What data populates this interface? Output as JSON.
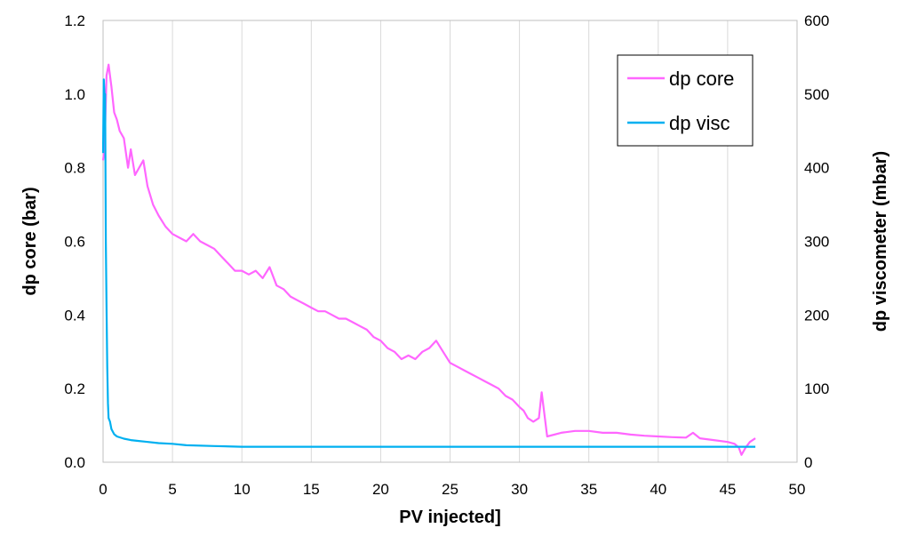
{
  "chart_data": {
    "type": "line",
    "title": "",
    "xlabel": "PV injected]",
    "ylabel": "dp core (bar)",
    "y2label": "dp viscometer (mbar)",
    "xlim": [
      0,
      50
    ],
    "ylim": [
      0,
      1.2
    ],
    "y2lim": [
      0,
      600
    ],
    "x_ticks": [
      "0",
      "5",
      "10",
      "15",
      "20",
      "25",
      "30",
      "35",
      "40",
      "45",
      "50"
    ],
    "y_ticks": [
      "0.0",
      "0.2",
      "0.4",
      "0.6",
      "0.8",
      "1.0",
      "1.2"
    ],
    "y2_ticks": [
      "0",
      "100",
      "200",
      "300",
      "400",
      "500",
      "600"
    ],
    "grid": "vertical",
    "legend_position": "top-right",
    "series": [
      {
        "name": "dp core",
        "axis": "left",
        "color": "#ff66ff",
        "x": [
          0.0,
          0.1,
          0.25,
          0.4,
          0.6,
          0.8,
          1.0,
          1.2,
          1.5,
          1.8,
          2.0,
          2.3,
          2.6,
          2.9,
          3.2,
          3.6,
          4.0,
          4.5,
          5.0,
          5.5,
          6.0,
          6.5,
          7.0,
          7.5,
          8.0,
          8.5,
          9.0,
          9.5,
          10.0,
          10.5,
          11.0,
          11.5,
          12.0,
          12.5,
          13.0,
          13.5,
          14.0,
          14.5,
          15.0,
          15.5,
          16.0,
          16.5,
          17.0,
          17.5,
          18.0,
          18.5,
          19.0,
          19.5,
          20.0,
          20.5,
          21.0,
          21.5,
          22.0,
          22.5,
          23.0,
          23.5,
          24.0,
          24.5,
          25.0,
          25.5,
          26.0,
          26.5,
          27.0,
          27.5,
          28.0,
          28.5,
          29.0,
          29.5,
          30.0,
          30.3,
          30.6,
          31.0,
          31.4,
          31.6,
          32.0,
          33.0,
          34.0,
          35.0,
          36.0,
          37.0,
          38.0,
          39.0,
          40.0,
          41.0,
          42.0,
          42.5,
          43.0,
          44.0,
          45.0,
          45.5,
          45.8,
          46.0,
          46.3,
          46.6,
          47.0
        ],
        "values": [
          0.82,
          0.85,
          1.05,
          1.08,
          1.02,
          0.95,
          0.93,
          0.9,
          0.88,
          0.8,
          0.85,
          0.78,
          0.8,
          0.82,
          0.75,
          0.7,
          0.67,
          0.64,
          0.62,
          0.61,
          0.6,
          0.62,
          0.6,
          0.59,
          0.58,
          0.56,
          0.54,
          0.52,
          0.52,
          0.51,
          0.52,
          0.5,
          0.53,
          0.48,
          0.47,
          0.45,
          0.44,
          0.43,
          0.42,
          0.41,
          0.41,
          0.4,
          0.39,
          0.39,
          0.38,
          0.37,
          0.36,
          0.34,
          0.33,
          0.31,
          0.3,
          0.28,
          0.29,
          0.28,
          0.3,
          0.31,
          0.33,
          0.3,
          0.27,
          0.26,
          0.25,
          0.24,
          0.23,
          0.22,
          0.21,
          0.2,
          0.18,
          0.17,
          0.15,
          0.14,
          0.12,
          0.11,
          0.12,
          0.19,
          0.07,
          0.08,
          0.085,
          0.085,
          0.08,
          0.08,
          0.075,
          0.072,
          0.07,
          0.068,
          0.067,
          0.08,
          0.065,
          0.06,
          0.055,
          0.05,
          0.04,
          0.02,
          0.04,
          0.055,
          0.065
        ]
      },
      {
        "name": "dp visc",
        "axis": "right",
        "color": "#00b0f0",
        "x": [
          0.0,
          0.05,
          0.1,
          0.15,
          0.2,
          0.25,
          0.3,
          0.35,
          0.4,
          0.5,
          0.6,
          0.8,
          1.0,
          1.5,
          2.0,
          2.5,
          3.0,
          4.0,
          5.0,
          6.0,
          8.0,
          10.0,
          15.0,
          20.0,
          25.0,
          30.0,
          35.0,
          40.0,
          45.0,
          47.0
        ],
        "values": [
          420,
          520,
          500,
          500,
          300,
          210,
          130,
          80,
          60,
          55,
          45,
          38,
          35,
          32,
          30,
          29,
          28,
          26,
          25,
          23,
          22,
          21,
          21,
          21,
          21,
          21,
          21,
          21,
          21,
          21
        ]
      }
    ]
  }
}
